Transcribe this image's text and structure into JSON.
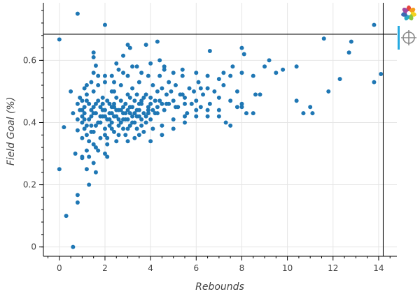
{
  "chart_data": {
    "type": "scatter",
    "xlabel": "Rebounds",
    "ylabel": "Field Goal (%)",
    "xlim": [
      -0.7,
      14.8
    ],
    "ylim": [
      -0.03,
      0.785
    ],
    "x_ticks": [
      0,
      2,
      4,
      6,
      8,
      10,
      12,
      14
    ],
    "y_ticks": [
      0,
      0.2,
      0.4,
      0.6
    ],
    "grid": true,
    "marker_color": "#1f77b4",
    "crosshair": {
      "x": 14.2,
      "y": 0.684
    },
    "series": [
      {
        "values": [
          [
            0.0,
            0.667
          ],
          [
            0.8,
            0.75
          ],
          [
            2.0,
            0.714
          ],
          [
            0.0,
            0.25
          ],
          [
            0.3,
            0.1
          ],
          [
            0.6,
            0.0
          ],
          [
            0.8,
            0.143
          ],
          [
            0.8,
            0.167
          ],
          [
            1.3,
            0.2
          ],
          [
            1.2,
            0.25
          ],
          [
            1.0,
            0.286
          ],
          [
            0.7,
            0.3
          ],
          [
            0.8,
            0.375
          ],
          [
            0.2,
            0.385
          ],
          [
            0.5,
            0.5
          ],
          [
            0.6,
            0.43
          ],
          [
            0.9,
            0.48
          ],
          [
            1.2,
            0.52
          ],
          [
            1.5,
            0.56
          ],
          [
            1.5,
            0.61
          ],
          [
            1.5,
            0.625
          ],
          [
            1.6,
            0.583
          ],
          [
            2.5,
            0.59
          ],
          [
            3.0,
            0.65
          ],
          [
            3.1,
            0.64
          ],
          [
            3.8,
            0.65
          ],
          [
            4.3,
            0.66
          ],
          [
            2.8,
            0.615
          ],
          [
            2.4,
            0.5
          ],
          [
            2.0,
            0.3
          ],
          [
            1.0,
            0.42
          ],
          [
            1.0,
            0.4
          ],
          [
            1.1,
            0.38
          ],
          [
            1.1,
            0.45
          ],
          [
            1.2,
            0.36
          ],
          [
            1.2,
            0.47
          ],
          [
            1.3,
            0.41
          ],
          [
            1.3,
            0.34
          ],
          [
            1.4,
            0.44
          ],
          [
            1.4,
            0.39
          ],
          [
            1.5,
            0.43
          ],
          [
            1.5,
            0.37
          ],
          [
            1.5,
            0.5
          ],
          [
            1.6,
            0.46
          ],
          [
            1.6,
            0.32
          ],
          [
            1.7,
            0.4
          ],
          [
            1.7,
            0.52
          ],
          [
            1.8,
            0.35
          ],
          [
            1.8,
            0.45
          ],
          [
            1.9,
            0.42
          ],
          [
            1.9,
            0.48
          ],
          [
            2.0,
            0.38
          ],
          [
            2.0,
            0.44
          ],
          [
            2.0,
            0.55
          ],
          [
            2.1,
            0.41
          ],
          [
            2.1,
            0.33
          ],
          [
            2.2,
            0.46
          ],
          [
            2.2,
            0.39
          ],
          [
            2.3,
            0.43
          ],
          [
            2.3,
            0.5
          ],
          [
            2.4,
            0.37
          ],
          [
            2.4,
            0.45
          ],
          [
            2.5,
            0.42
          ],
          [
            2.5,
            0.48
          ],
          [
            2.6,
            0.36
          ],
          [
            2.6,
            0.44
          ],
          [
            2.7,
            0.4
          ],
          [
            2.7,
            0.52
          ],
          [
            2.8,
            0.43
          ],
          [
            2.8,
            0.38
          ],
          [
            2.9,
            0.46
          ],
          [
            2.9,
            0.41
          ],
          [
            3.0,
            0.44
          ],
          [
            3.0,
            0.49
          ],
          [
            3.1,
            0.39
          ],
          [
            3.1,
            0.45
          ],
          [
            3.2,
            0.42
          ],
          [
            3.2,
            0.51
          ],
          [
            3.3,
            0.47
          ],
          [
            3.3,
            0.4
          ],
          [
            3.4,
            0.44
          ],
          [
            3.4,
            0.38
          ],
          [
            3.5,
            0.46
          ],
          [
            3.5,
            0.53
          ],
          [
            3.6,
            0.41
          ],
          [
            3.6,
            0.47
          ],
          [
            3.7,
            0.43
          ],
          [
            3.8,
            0.49
          ],
          [
            3.8,
            0.42
          ],
          [
            3.9,
            0.45
          ],
          [
            4.0,
            0.48
          ],
          [
            4.0,
            0.41
          ],
          [
            4.1,
            0.52
          ],
          [
            4.1,
            0.44
          ],
          [
            4.2,
            0.47
          ],
          [
            4.3,
            0.5
          ],
          [
            4.3,
            0.43
          ],
          [
            4.4,
            0.55
          ],
          [
            4.5,
            0.46
          ],
          [
            4.5,
            0.51
          ],
          [
            4.6,
            0.57
          ],
          [
            4.6,
            0.44
          ],
          [
            4.7,
            0.49
          ],
          [
            4.8,
            0.53
          ],
          [
            4.8,
            0.46
          ],
          [
            4.9,
            0.5
          ],
          [
            5.0,
            0.47
          ],
          [
            5.1,
            0.52
          ],
          [
            5.2,
            0.45
          ],
          [
            5.3,
            0.49
          ],
          [
            5.4,
            0.55
          ],
          [
            5.5,
            0.48
          ],
          [
            5.6,
            0.43
          ],
          [
            5.7,
            0.51
          ],
          [
            5.8,
            0.46
          ],
          [
            5.9,
            0.5
          ],
          [
            6.0,
            0.47
          ],
          [
            6.1,
            0.53
          ],
          [
            6.2,
            0.45
          ],
          [
            6.3,
            0.49
          ],
          [
            6.5,
            0.51
          ],
          [
            6.6,
            0.46
          ],
          [
            6.8,
            0.5
          ],
          [
            7.0,
            0.48
          ],
          [
            7.2,
            0.52
          ],
          [
            7.5,
            0.47
          ],
          [
            7.8,
            0.5
          ],
          [
            8.0,
            0.46
          ],
          [
            1.0,
            0.44
          ],
          [
            1.1,
            0.41
          ],
          [
            1.3,
            0.46
          ],
          [
            1.4,
            0.42
          ],
          [
            1.6,
            0.43
          ],
          [
            1.7,
            0.47
          ],
          [
            1.8,
            0.4
          ],
          [
            1.9,
            0.44
          ],
          [
            2.0,
            0.42
          ],
          [
            2.1,
            0.47
          ],
          [
            2.2,
            0.43
          ],
          [
            2.3,
            0.4
          ],
          [
            2.4,
            0.46
          ],
          [
            2.5,
            0.44
          ],
          [
            2.6,
            0.41
          ],
          [
            2.7,
            0.47
          ],
          [
            2.8,
            0.45
          ],
          [
            2.9,
            0.43
          ],
          [
            3.0,
            0.41
          ],
          [
            3.1,
            0.48
          ],
          [
            3.2,
            0.45
          ],
          [
            3.3,
            0.43
          ],
          [
            3.4,
            0.49
          ],
          [
            3.5,
            0.44
          ],
          [
            3.6,
            0.46
          ],
          [
            3.7,
            0.48
          ],
          [
            3.9,
            0.44
          ],
          [
            4.0,
            0.46
          ],
          [
            4.2,
            0.43
          ],
          [
            4.4,
            0.47
          ],
          [
            1.2,
            0.39
          ],
          [
            1.4,
            0.37
          ],
          [
            1.6,
            0.39
          ],
          [
            1.8,
            0.42
          ],
          [
            2.0,
            0.36
          ],
          [
            2.2,
            0.41
          ],
          [
            2.4,
            0.42
          ],
          [
            2.6,
            0.39
          ],
          [
            2.8,
            0.41
          ],
          [
            3.0,
            0.38
          ],
          [
            3.2,
            0.4
          ],
          [
            3.4,
            0.42
          ],
          [
            3.6,
            0.39
          ],
          [
            3.8,
            0.4
          ],
          [
            1.1,
            0.43
          ],
          [
            1.5,
            0.45
          ],
          [
            1.9,
            0.46
          ],
          [
            2.3,
            0.45
          ],
          [
            2.7,
            0.44
          ],
          [
            3.1,
            0.43
          ],
          [
            3.5,
            0.42
          ],
          [
            3.9,
            0.43
          ],
          [
            4.3,
            0.45
          ],
          [
            4.7,
            0.46
          ],
          [
            5.1,
            0.45
          ],
          [
            5.5,
            0.46
          ],
          [
            1.5,
            0.33
          ],
          [
            1.7,
            0.31
          ],
          [
            2.1,
            0.35
          ],
          [
            2.5,
            0.34
          ],
          [
            2.9,
            0.36
          ],
          [
            3.3,
            0.35
          ],
          [
            3.7,
            0.37
          ],
          [
            4.1,
            0.38
          ],
          [
            4.5,
            0.39
          ],
          [
            5.0,
            0.41
          ],
          [
            5.5,
            0.42
          ],
          [
            6.0,
            0.44
          ],
          [
            6.5,
            0.42
          ],
          [
            7.0,
            0.44
          ],
          [
            2.3,
            0.55
          ],
          [
            2.6,
            0.57
          ],
          [
            3.0,
            0.55
          ],
          [
            3.4,
            0.58
          ],
          [
            3.9,
            0.55
          ],
          [
            4.6,
            0.58
          ],
          [
            5.0,
            0.56
          ],
          [
            5.4,
            0.57
          ],
          [
            6.0,
            0.56
          ],
          [
            6.5,
            0.55
          ],
          [
            7.0,
            0.54
          ],
          [
            7.5,
            0.55
          ],
          [
            8.0,
            0.56
          ],
          [
            8.5,
            0.55
          ],
          [
            8.0,
            0.64
          ],
          [
            9.0,
            0.58
          ],
          [
            9.2,
            0.6
          ],
          [
            9.5,
            0.56
          ],
          [
            9.8,
            0.57
          ],
          [
            10.4,
            0.58
          ],
          [
            10.4,
            0.47
          ],
          [
            10.7,
            0.43
          ],
          [
            11.0,
            0.45
          ],
          [
            11.1,
            0.43
          ],
          [
            11.6,
            0.67
          ],
          [
            11.8,
            0.5
          ],
          [
            12.3,
            0.54
          ],
          [
            12.7,
            0.625
          ],
          [
            12.8,
            0.66
          ],
          [
            13.8,
            0.714
          ],
          [
            13.8,
            0.53
          ],
          [
            14.1,
            0.556
          ],
          [
            5.5,
            0.4
          ],
          [
            6.0,
            0.42
          ],
          [
            6.5,
            0.44
          ],
          [
            7.0,
            0.42
          ],
          [
            7.3,
            0.4
          ],
          [
            7.5,
            0.39
          ],
          [
            7.8,
            0.45
          ],
          [
            8.0,
            0.45
          ],
          [
            8.2,
            0.43
          ],
          [
            8.5,
            0.43
          ],
          [
            8.6,
            0.49
          ],
          [
            8.8,
            0.49
          ],
          [
            8.1,
            0.62
          ],
          [
            1.0,
            0.35
          ],
          [
            1.2,
            0.31
          ],
          [
            1.3,
            0.29
          ],
          [
            1.0,
            0.29
          ],
          [
            1.5,
            0.27
          ],
          [
            1.6,
            0.24
          ],
          [
            2.1,
            0.29
          ],
          [
            2.3,
            0.38
          ],
          [
            3.0,
            0.34
          ],
          [
            3.5,
            0.36
          ],
          [
            4.0,
            0.34
          ],
          [
            4.5,
            0.36
          ],
          [
            5.0,
            0.38
          ],
          [
            0.8,
            0.46
          ],
          [
            0.9,
            0.44
          ],
          [
            0.8,
            0.41
          ],
          [
            1.0,
            0.47
          ],
          [
            1.2,
            0.49
          ],
          [
            1.1,
            0.51
          ],
          [
            1.4,
            0.53
          ],
          [
            1.7,
            0.55
          ],
          [
            2.0,
            0.53
          ],
          [
            2.4,
            0.53
          ],
          [
            2.8,
            0.56
          ],
          [
            3.2,
            0.58
          ],
          [
            3.6,
            0.56
          ],
          [
            4.0,
            0.59
          ],
          [
            4.4,
            0.6
          ],
          [
            6.6,
            0.63
          ],
          [
            5.4,
            0.49
          ],
          [
            6.2,
            0.51
          ],
          [
            7.2,
            0.56
          ],
          [
            7.6,
            0.58
          ]
        ]
      }
    ]
  },
  "toolbar": {
    "logo": "bokeh-logo-icon",
    "tool": "crosshair-icon"
  }
}
